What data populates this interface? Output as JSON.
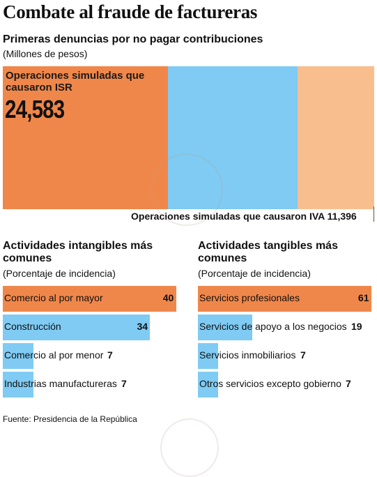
{
  "title": "Combate al fraude de factureras",
  "colors": {
    "orange": "#F0874A",
    "blue": "#7FCBF3",
    "light_orange": "#F9BE8E"
  },
  "chart_data": [
    {
      "type": "bar",
      "title": "Primeras denuncias por no pagar contribuciones",
      "ylabel": "(Millones de pesos)",
      "categories": [
        "Operaciones simuladas que causaron ISR",
        "",
        "Operaciones simuladas que causaron IVA"
      ],
      "values": [
        24583,
        null,
        11396
      ],
      "value_labels": [
        "24,583",
        "",
        "11,396"
      ]
    },
    {
      "type": "bar",
      "title": "Actividades intangibles más comunes",
      "ylabel": "(Porcentaje de incidencia)",
      "categories": [
        "Comercio al por mayor",
        "Construcción",
        "Comercio al por menor",
        "Industrias manufactureras"
      ],
      "values": [
        40,
        34,
        7,
        7
      ],
      "colors": [
        "#F0874A",
        "#7FCBF3",
        "#7FCBF3",
        "#7FCBF3"
      ],
      "xlim": [
        0,
        41
      ]
    },
    {
      "type": "bar",
      "title": "Actividades tangibles más comunes",
      "ylabel": "(Porcentaje de incidencia)",
      "categories": [
        "Servicios profesionales",
        "Servicios de apoyo a los negocios",
        "Servicios inmobiliarios",
        "Otros servicios excepto gobierno"
      ],
      "values": [
        61,
        19,
        7,
        7
      ],
      "colors": [
        "#F0874A",
        "#7FCBF3",
        "#7FCBF3",
        "#7FCBF3"
      ],
      "xlim": [
        0,
        62
      ]
    }
  ],
  "source": "Fuente: Presidencia de la República"
}
